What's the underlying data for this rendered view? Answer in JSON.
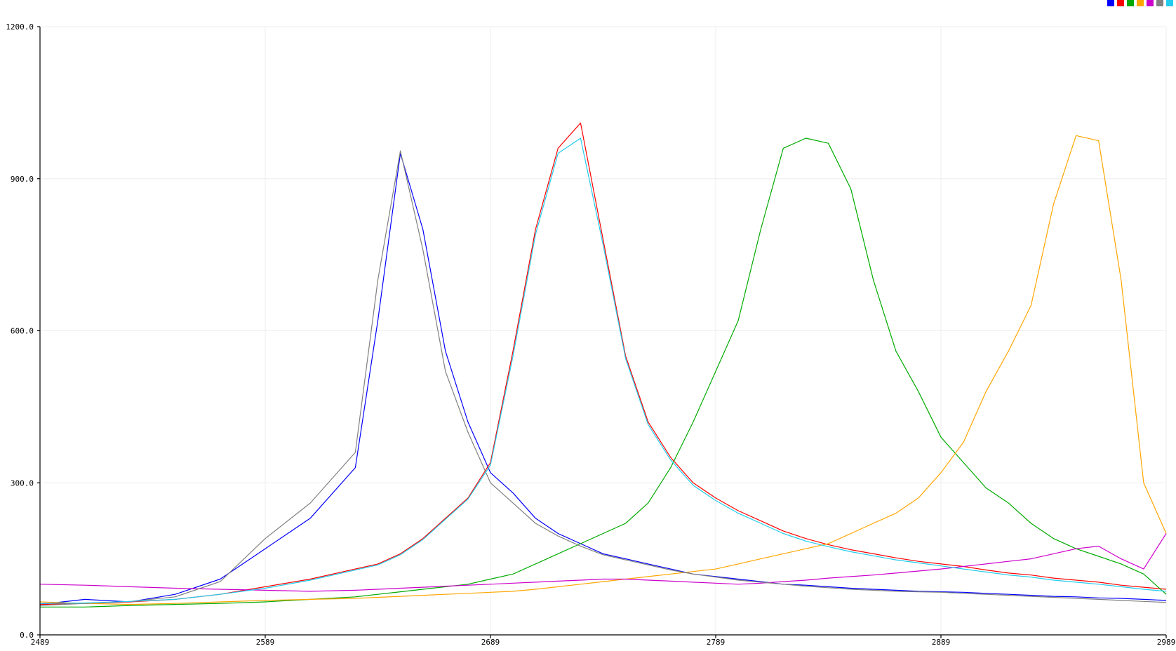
{
  "chart_data": {
    "type": "line",
    "title": "",
    "xlabel": "",
    "ylabel": "",
    "xlim": [
      2489,
      2989
    ],
    "ylim": [
      0,
      1200
    ],
    "grid": true,
    "legend": "top-right",
    "x_ticks": [
      "2489",
      "2589",
      "2689",
      "2789",
      "2889",
      "2989"
    ],
    "y_ticks": [
      "0.0",
      "300.0",
      "600.0",
      "900.0",
      "1200.0"
    ],
    "x_tick_values": [
      2489,
      2589,
      2689,
      2789,
      2889,
      2989
    ],
    "y_tick_values": [
      0,
      300,
      600,
      900,
      1200
    ],
    "x": [
      2489,
      2509,
      2529,
      2549,
      2569,
      2589,
      2609,
      2629,
      2639,
      2649,
      2659,
      2669,
      2679,
      2689,
      2699,
      2709,
      2719,
      2729,
      2739,
      2749,
      2759,
      2769,
      2779,
      2789,
      2799,
      2809,
      2819,
      2829,
      2839,
      2849,
      2859,
      2869,
      2879,
      2889,
      2899,
      2909,
      2919,
      2929,
      2939,
      2949,
      2959,
      2969,
      2979,
      2989
    ],
    "series": [
      {
        "color": "#0000ff",
        "values": [
          60,
          70,
          65,
          80,
          110,
          170,
          230,
          330,
          620,
          950,
          800,
          560,
          420,
          320,
          280,
          230,
          200,
          180,
          160,
          150,
          140,
          130,
          120,
          115,
          110,
          105,
          100,
          98,
          95,
          92,
          90,
          88,
          86,
          85,
          84,
          82,
          80,
          78,
          76,
          75,
          73,
          72,
          70,
          68
        ]
      },
      {
        "color": "#ff0000",
        "values": [
          60,
          62,
          65,
          70,
          80,
          95,
          110,
          130,
          140,
          160,
          190,
          230,
          270,
          340,
          560,
          800,
          960,
          1010,
          780,
          550,
          420,
          350,
          300,
          270,
          245,
          225,
          205,
          190,
          178,
          168,
          160,
          152,
          145,
          140,
          135,
          128,
          122,
          118,
          112,
          108,
          104,
          98,
          94,
          90
        ]
      },
      {
        "color": "#00aa00",
        "values": [
          55,
          55,
          58,
          60,
          62,
          65,
          70,
          75,
          80,
          85,
          90,
          95,
          100,
          110,
          120,
          140,
          160,
          180,
          200,
          220,
          260,
          330,
          420,
          520,
          620,
          800,
          960,
          980,
          970,
          880,
          700,
          560,
          480,
          390,
          340,
          290,
          260,
          220,
          190,
          170,
          155,
          140,
          120,
          80
        ]
      },
      {
        "color": "#ffa500",
        "values": [
          65,
          62,
          60,
          62,
          65,
          68,
          70,
          72,
          74,
          76,
          78,
          80,
          82,
          84,
          86,
          90,
          95,
          100,
          105,
          110,
          115,
          120,
          125,
          130,
          140,
          150,
          160,
          170,
          180,
          200,
          220,
          240,
          270,
          320,
          380,
          480,
          560,
          650,
          850,
          985,
          975,
          700,
          300,
          200
        ]
      },
      {
        "color": "#cc00cc",
        "values": [
          100,
          98,
          95,
          92,
          90,
          88,
          86,
          88,
          90,
          92,
          94,
          96,
          98,
          100,
          102,
          104,
          106,
          108,
          110,
          110,
          108,
          106,
          104,
          102,
          100,
          102,
          105,
          108,
          112,
          115,
          118,
          122,
          126,
          130,
          135,
          140,
          145,
          150,
          160,
          170,
          175,
          150,
          130,
          200
        ]
      },
      {
        "color": "#808080",
        "values": [
          58,
          62,
          66,
          75,
          105,
          190,
          260,
          360,
          700,
          955,
          760,
          520,
          400,
          300,
          260,
          220,
          195,
          175,
          158,
          148,
          138,
          128,
          120,
          114,
          108,
          104,
          100,
          96,
          93,
          90,
          88,
          86,
          85,
          84,
          82,
          80,
          78,
          76,
          74,
          72,
          70,
          68,
          66,
          64
        ]
      },
      {
        "color": "#22ccee",
        "values": [
          62,
          63,
          66,
          70,
          80,
          92,
          108,
          128,
          138,
          158,
          188,
          228,
          268,
          335,
          550,
          790,
          950,
          980,
          770,
          545,
          415,
          345,
          295,
          265,
          240,
          220,
          200,
          185,
          174,
          164,
          156,
          148,
          142,
          136,
          130,
          124,
          118,
          114,
          108,
          104,
          100,
          95,
          90,
          86
        ]
      }
    ]
  }
}
